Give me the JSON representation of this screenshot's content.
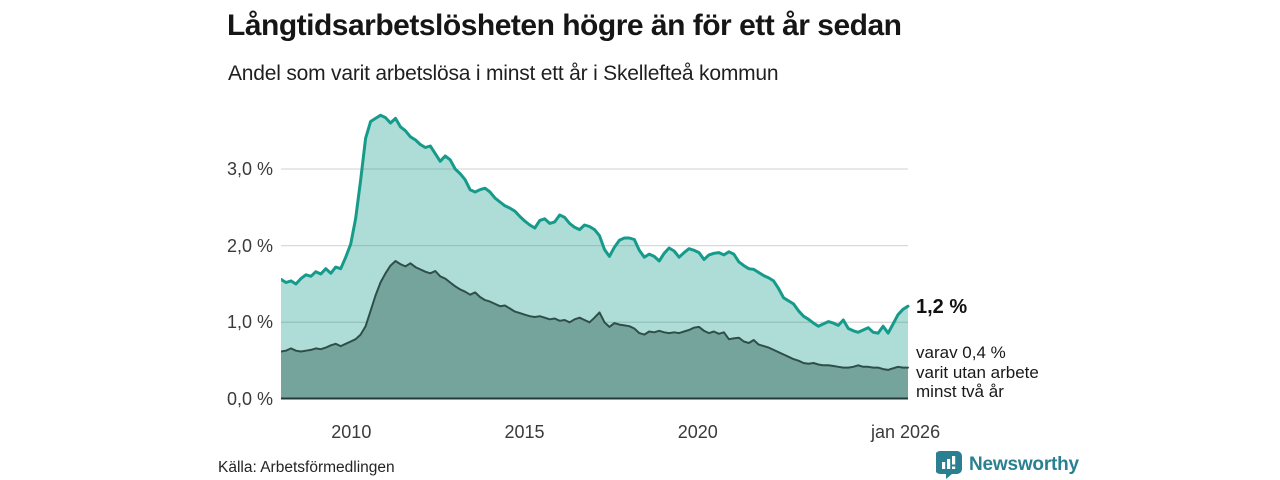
{
  "header": {
    "title": "Långtidsarbetslösheten högre än för ett år sedan",
    "subtitle": "Andel som varit arbetslösa i minst ett år i Skellefteå kommun"
  },
  "chart_data": {
    "type": "area",
    "title": "Långtidsarbetslösheten högre än för ett år sedan",
    "subtitle": "Andel som varit arbetslösa i minst ett år i Skellefteå kommun",
    "xlabel": "",
    "ylabel": "",
    "x_start": 2007.97,
    "x_end": 2026.07,
    "ylim": [
      0,
      3.9
    ],
    "grid": "horizontal",
    "grid_color": "#d9d9d9",
    "baseline_color": "#223b36",
    "y_ticks": [
      {
        "label": "3,0 %",
        "value": 3.0
      },
      {
        "label": "2,0 %",
        "value": 2.0
      },
      {
        "label": "1,0 %",
        "value": 1.0
      },
      {
        "label": "0,0 %",
        "value": 0.0
      }
    ],
    "x_ticks": [
      {
        "label": "2010",
        "year": 2010
      },
      {
        "label": "2015",
        "year": 2015
      },
      {
        "label": "2020",
        "year": 2020
      },
      {
        "label": "jan 2026",
        "year": 2026
      }
    ],
    "series": [
      {
        "name": "Arbetslösa minst ett år",
        "color": "#169b8b",
        "fill": "rgba(22,155,139,0.35)",
        "line_width": 3,
        "end_value": 1.2,
        "values": [
          1.56,
          1.52,
          1.54,
          1.5,
          1.57,
          1.62,
          1.6,
          1.66,
          1.63,
          1.7,
          1.64,
          1.72,
          1.7,
          1.85,
          2.02,
          2.35,
          2.85,
          3.4,
          3.62,
          3.66,
          3.7,
          3.67,
          3.6,
          3.66,
          3.55,
          3.5,
          3.42,
          3.38,
          3.32,
          3.28,
          3.3,
          3.2,
          3.1,
          3.17,
          3.12,
          3.0,
          2.94,
          2.86,
          2.73,
          2.7,
          2.73,
          2.75,
          2.7,
          2.62,
          2.57,
          2.52,
          2.49,
          2.45,
          2.38,
          2.32,
          2.27,
          2.23,
          2.33,
          2.35,
          2.29,
          2.31,
          2.4,
          2.37,
          2.29,
          2.24,
          2.21,
          2.27,
          2.25,
          2.21,
          2.13,
          1.95,
          1.86,
          1.98,
          2.07,
          2.1,
          2.1,
          2.08,
          1.94,
          1.85,
          1.89,
          1.86,
          1.8,
          1.9,
          1.97,
          1.93,
          1.85,
          1.91,
          1.96,
          1.94,
          1.91,
          1.82,
          1.88,
          1.9,
          1.91,
          1.88,
          1.92,
          1.89,
          1.79,
          1.74,
          1.7,
          1.69,
          1.65,
          1.61,
          1.58,
          1.54,
          1.44,
          1.32,
          1.28,
          1.24,
          1.15,
          1.08,
          1.04,
          0.99,
          0.95,
          0.98,
          1.01,
          0.99,
          0.96,
          1.03,
          0.92,
          0.89,
          0.87,
          0.9,
          0.93,
          0.87,
          0.86,
          0.95,
          0.86,
          0.98,
          1.1,
          1.17,
          1.21
        ]
      },
      {
        "name": "Utan arbete minst två år",
        "color": "#2e4f49",
        "fill": "#75a49c",
        "line_width": 2,
        "end_value": 0.4,
        "values": [
          0.62,
          0.63,
          0.66,
          0.63,
          0.62,
          0.63,
          0.64,
          0.66,
          0.65,
          0.67,
          0.7,
          0.72,
          0.69,
          0.72,
          0.75,
          0.78,
          0.84,
          0.95,
          1.15,
          1.35,
          1.52,
          1.64,
          1.74,
          1.8,
          1.76,
          1.73,
          1.77,
          1.72,
          1.69,
          1.66,
          1.64,
          1.67,
          1.6,
          1.57,
          1.52,
          1.47,
          1.43,
          1.4,
          1.36,
          1.39,
          1.33,
          1.29,
          1.27,
          1.24,
          1.21,
          1.22,
          1.18,
          1.14,
          1.12,
          1.1,
          1.08,
          1.07,
          1.08,
          1.06,
          1.04,
          1.05,
          1.02,
          1.03,
          1.0,
          1.04,
          1.06,
          1.03,
          1.0,
          1.06,
          1.13,
          1.0,
          0.94,
          0.99,
          0.97,
          0.96,
          0.95,
          0.92,
          0.86,
          0.84,
          0.88,
          0.87,
          0.89,
          0.87,
          0.86,
          0.87,
          0.86,
          0.88,
          0.9,
          0.93,
          0.94,
          0.89,
          0.86,
          0.88,
          0.85,
          0.87,
          0.78,
          0.79,
          0.8,
          0.75,
          0.73,
          0.77,
          0.71,
          0.69,
          0.67,
          0.64,
          0.61,
          0.58,
          0.55,
          0.52,
          0.5,
          0.47,
          0.46,
          0.47,
          0.45,
          0.44,
          0.44,
          0.43,
          0.42,
          0.41,
          0.41,
          0.42,
          0.44,
          0.42,
          0.42,
          0.41,
          0.41,
          0.39,
          0.38,
          0.4,
          0.42,
          0.41,
          0.41
        ]
      }
    ],
    "annotations": {
      "end_value_label": "1,2 %",
      "sub_label_lines": [
        "varav 0,4 %",
        "varit utan arbete",
        "minst två år"
      ]
    }
  },
  "footer": {
    "source": "Källa: Arbetsförmedlingen",
    "brand": "Newsworthy",
    "brand_color": "#2a8090"
  }
}
